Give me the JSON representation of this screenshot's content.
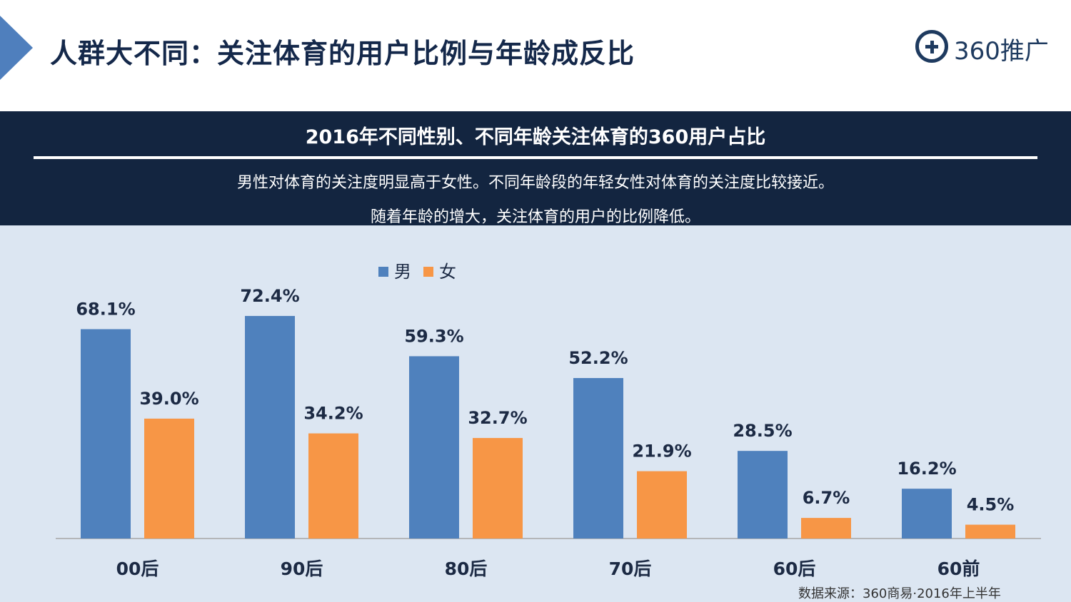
{
  "header": {
    "title": "人群大不同：关注体育的用户比例与年龄成反比",
    "logo_text": "360推广"
  },
  "band": {
    "title": "2016年不同性别、不同年龄关注体育的360用户占比",
    "line1": "男性对体育的关注度明显高于女性。不同年龄段的年轻女性对体育的关注度比较接近。",
    "line2": "随着年龄的增大，关注体育的用户的比例降低。"
  },
  "source": "数据来源：360商易·2016年上半年",
  "chart_data": {
    "type": "bar",
    "categories": [
      "00后",
      "90后",
      "80后",
      "70后",
      "60后",
      "60前"
    ],
    "series": [
      {
        "name": "男",
        "values": [
          68.1,
          72.4,
          59.3,
          52.2,
          28.5,
          16.2
        ],
        "color": "#4f81bd"
      },
      {
        "name": "女",
        "values": [
          39.0,
          34.2,
          32.7,
          21.9,
          6.7,
          4.5
        ],
        "color": "#f79646"
      }
    ],
    "value_suffix": "%",
    "ylim": [
      0,
      100
    ],
    "grid": false,
    "legend": "top-center"
  }
}
